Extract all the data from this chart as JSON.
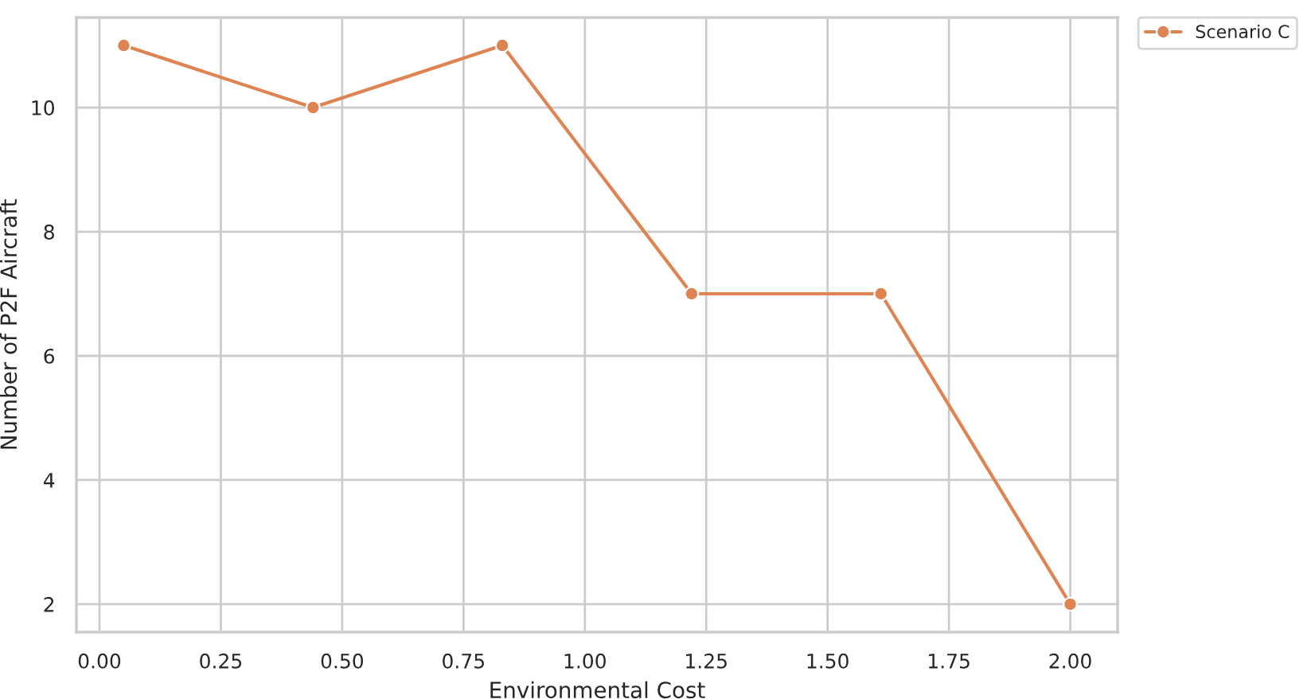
{
  "chart_data": {
    "type": "line",
    "xlabel": "Environmental Cost",
    "ylabel": "Number of P2F Aircraft",
    "x": [
      0.05,
      0.44,
      0.83,
      1.22,
      1.61,
      2.0
    ],
    "series": [
      {
        "name": "Scenario C",
        "color": "#dd8452",
        "values": [
          11,
          10,
          11,
          7,
          7,
          2
        ]
      }
    ],
    "xlim": [
      -0.0475,
      2.0975
    ],
    "xticks": [
      {
        "value": 0,
        "label": "0.00"
      },
      {
        "value": 0.25,
        "label": "0.25"
      },
      {
        "value": 0.5,
        "label": "0.50"
      },
      {
        "value": 0.75,
        "label": "0.75"
      },
      {
        "value": 1,
        "label": "1.00"
      },
      {
        "value": 1.25,
        "label": "1.25"
      },
      {
        "value": 1.5,
        "label": "1.50"
      },
      {
        "value": 1.75,
        "label": "1.75"
      },
      {
        "value": 2,
        "label": "2.00"
      }
    ],
    "ylim": [
      1.55,
      11.45
    ],
    "yticks": [
      2,
      4,
      6,
      8,
      10
    ],
    "grid": true,
    "legend": "top right",
    "marker": "circle",
    "line_style": "solid"
  }
}
